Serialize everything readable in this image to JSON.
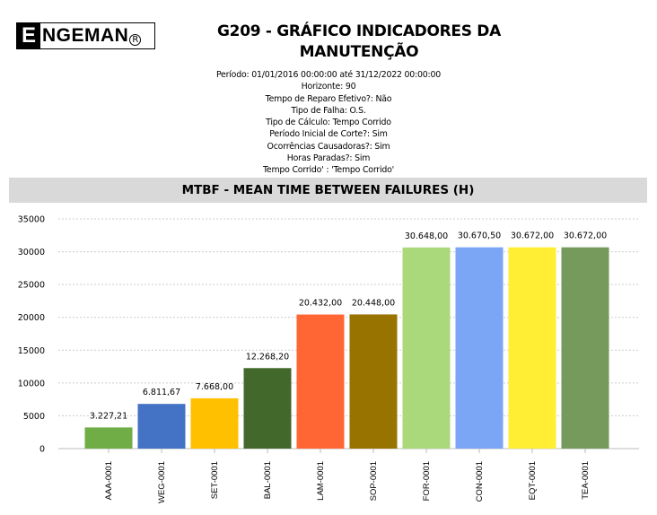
{
  "logo": {
    "text": "ENGEMAN"
  },
  "header": {
    "title_line1": "G209 - GRÁFICO INDICADORES DA",
    "title_line2": "MANUTENÇÃO"
  },
  "params": [
    "Período: 01/01/2016 00:00:00  até  31/12/2022 00:00:00",
    "Horizonte: 90",
    "Tempo de Reparo Efetivo?: Não",
    "Tipo de Falha: O.S.",
    "Tipo de Cálculo: Tempo Corrido",
    "Período Inicial de Corte?: Sim",
    "Ocorrências Causadoras?: Sim",
    "Horas Paradas?: Sim",
    "Tempo Corrido' : 'Tempo Corrido'"
  ],
  "chart_data": {
    "type": "bar",
    "title": "MTBF - MEAN TIME BETWEEN FAILURES (H)",
    "categories": [
      "AAA-0001",
      "WEG-0001",
      "SET-0001",
      "BAL-0001",
      "LAM-0001",
      "SOP-0001",
      "FOR-0001",
      "CON-0001",
      "EQT-0001",
      "TEA-0001"
    ],
    "values": [
      3227.21,
      6811.67,
      7668.0,
      12268.2,
      20432.0,
      20448.0,
      30648.0,
      30670.5,
      30672.0,
      30672.0
    ],
    "data_labels": [
      "3.227,21",
      "6.811,67",
      "7.668,00",
      "12.268,20",
      "20.432,00",
      "20.448,00",
      "30.648,00",
      "30.670,50",
      "30.672,00",
      "30.672,00"
    ],
    "colors": [
      "#70ad47",
      "#4472c4",
      "#ffc000",
      "#43682b",
      "#ff6633",
      "#997300",
      "#a9d97a",
      "#7aa6f5",
      "#ffee33",
      "#759a5c"
    ],
    "ylim": [
      0,
      35000
    ],
    "yticks": [
      "0",
      "5000",
      "10000",
      "15000",
      "20000",
      "25000",
      "30000",
      "35000"
    ],
    "grid": true,
    "xlabel": "",
    "ylabel": ""
  }
}
